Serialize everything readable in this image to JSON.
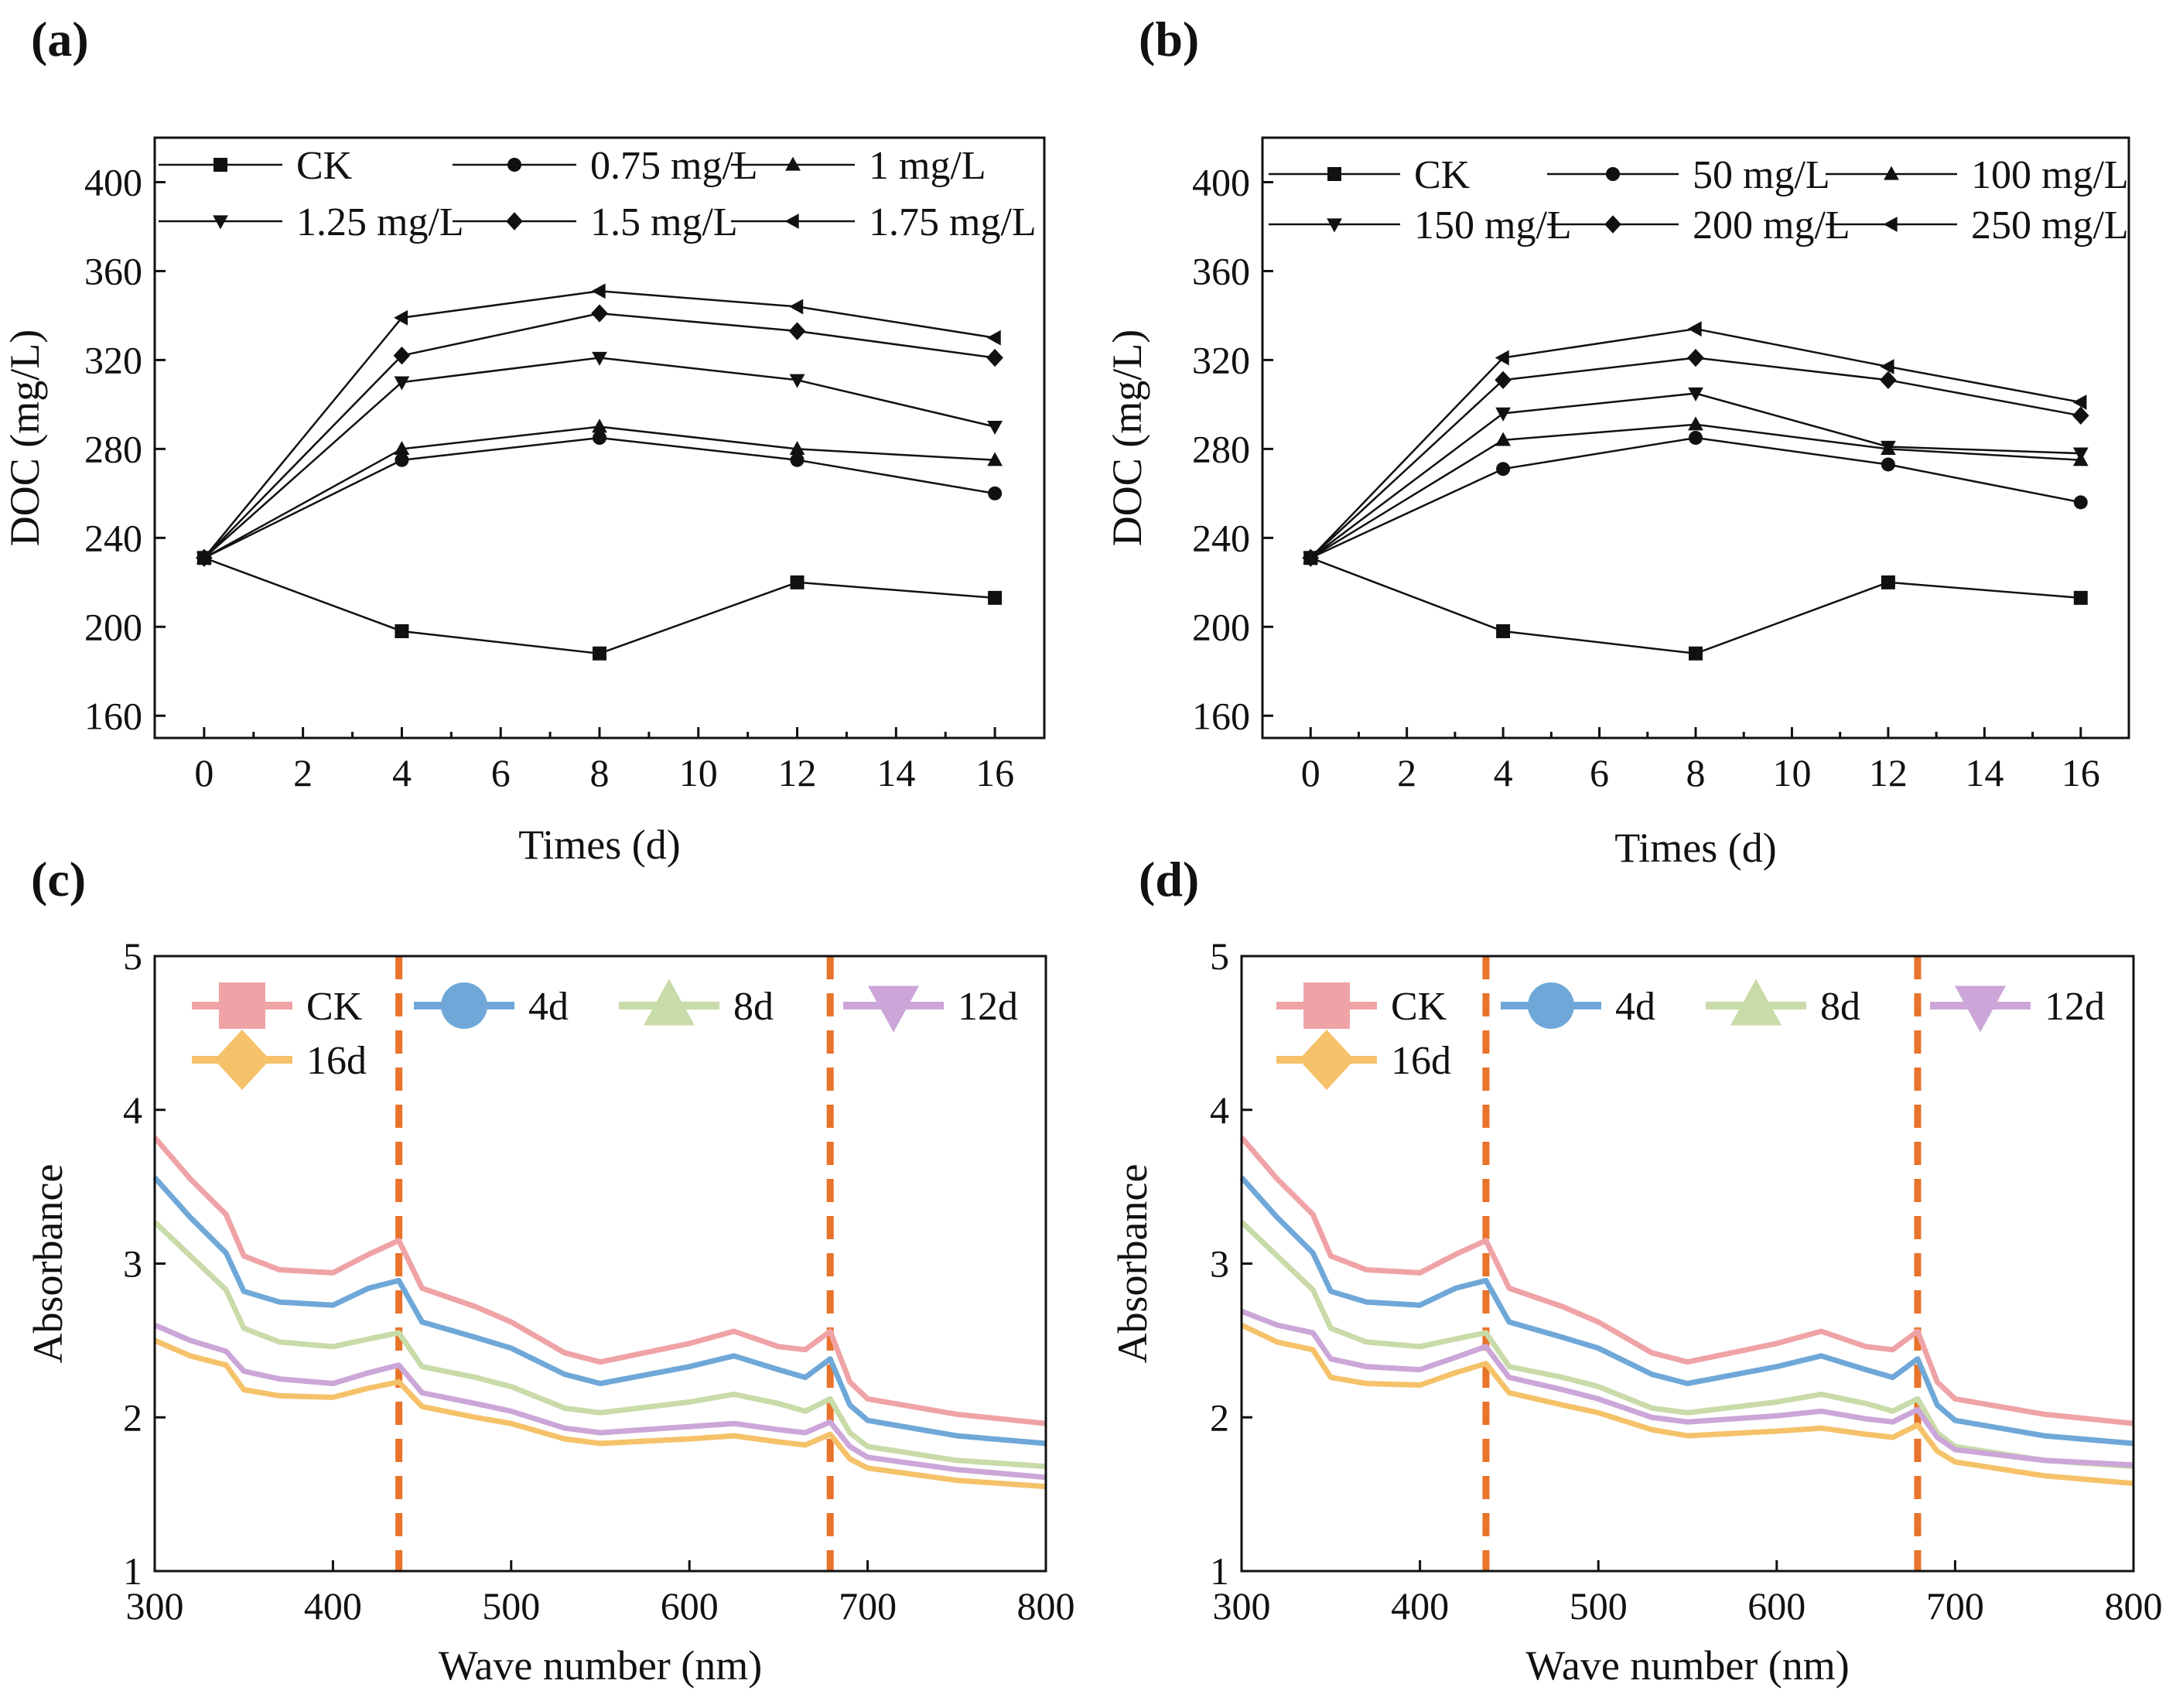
{
  "chart_data": [
    {
      "panel": "(a)",
      "type": "line",
      "xlabel": "Times (d)",
      "ylabel": "DOC (mg/L)",
      "xlim": [
        -1,
        17
      ],
      "ylim": [
        150,
        420
      ],
      "xticks": [
        0,
        2,
        4,
        6,
        8,
        10,
        12,
        14,
        16
      ],
      "yticks": [
        160,
        200,
        240,
        280,
        320,
        360,
        400
      ],
      "x": [
        0,
        4,
        8,
        12,
        16
      ],
      "series": [
        {
          "name": "CK",
          "marker": "square",
          "values": [
            231,
            198,
            188,
            220,
            213
          ]
        },
        {
          "name": "0.75 mg/L",
          "marker": "circle",
          "values": [
            231,
            275,
            285,
            275,
            260
          ]
        },
        {
          "name": "1 mg/L",
          "marker": "triangle-up",
          "values": [
            231,
            280,
            290,
            280,
            275
          ]
        },
        {
          "name": "1.25 mg/L",
          "marker": "triangle-down",
          "values": [
            231,
            310,
            321,
            311,
            290
          ]
        },
        {
          "name": "1.5 mg/L",
          "marker": "diamond",
          "values": [
            231,
            322,
            341,
            333,
            321
          ]
        },
        {
          "name": "1.75 mg/L",
          "marker": "triangle-left",
          "values": [
            231,
            339,
            351,
            344,
            330
          ]
        }
      ]
    },
    {
      "panel": "(b)",
      "type": "line",
      "xlabel": "Times (d)",
      "ylabel": "DOC (mg/L)",
      "xlim": [
        -1,
        17
      ],
      "ylim": [
        150,
        420
      ],
      "xticks": [
        0,
        2,
        4,
        6,
        8,
        10,
        12,
        14,
        16
      ],
      "yticks": [
        160,
        200,
        240,
        280,
        320,
        360,
        400
      ],
      "x": [
        0,
        4,
        8,
        12,
        16
      ],
      "series": [
        {
          "name": "CK",
          "marker": "square",
          "values": [
            231,
            198,
            188,
            220,
            213
          ]
        },
        {
          "name": "50 mg/L",
          "marker": "circle",
          "values": [
            231,
            271,
            285,
            273,
            256
          ]
        },
        {
          "name": "100 mg/L",
          "marker": "triangle-up",
          "values": [
            231,
            284,
            291,
            280,
            275
          ]
        },
        {
          "name": "150 mg/L",
          "marker": "triangle-down",
          "values": [
            231,
            296,
            305,
            281,
            278
          ]
        },
        {
          "name": "200 mg/L",
          "marker": "diamond",
          "values": [
            231,
            311,
            321,
            311,
            295
          ]
        },
        {
          "name": "250 mg/L",
          "marker": "triangle-left",
          "values": [
            231,
            321,
            334,
            317,
            301
          ]
        }
      ]
    },
    {
      "panel": "(c)",
      "type": "line",
      "xlabel": "Wave number (nm)",
      "ylabel": "Absorbance",
      "xlim": [
        300,
        800
      ],
      "ylim": [
        1,
        5
      ],
      "xticks": [
        300,
        400,
        500,
        600,
        700,
        800
      ],
      "yticks": [
        1,
        2,
        3,
        4,
        5
      ],
      "reference_lines_x": [
        437,
        679
      ],
      "x": [
        300,
        320,
        340,
        350,
        370,
        400,
        420,
        437,
        450,
        480,
        500,
        530,
        550,
        600,
        625,
        650,
        665,
        679,
        690,
        700,
        750,
        800
      ],
      "series": [
        {
          "name": "CK",
          "color": "#EFA3A6",
          "marker": "square",
          "values": [
            3.82,
            3.55,
            3.32,
            3.05,
            2.96,
            2.94,
            3.06,
            3.15,
            2.84,
            2.72,
            2.62,
            2.42,
            2.36,
            2.48,
            2.56,
            2.46,
            2.44,
            2.56,
            2.23,
            2.12,
            2.02,
            1.96
          ]
        },
        {
          "name": "4d",
          "color": "#6FA8D8",
          "marker": "circle",
          "values": [
            3.56,
            3.3,
            3.07,
            2.82,
            2.75,
            2.73,
            2.84,
            2.89,
            2.62,
            2.52,
            2.45,
            2.28,
            2.22,
            2.33,
            2.4,
            2.31,
            2.26,
            2.38,
            2.08,
            1.98,
            1.88,
            1.83
          ]
        },
        {
          "name": "8d",
          "color": "#C8DBA8",
          "marker": "triangle-up",
          "values": [
            3.27,
            3.05,
            2.83,
            2.58,
            2.49,
            2.46,
            2.51,
            2.55,
            2.33,
            2.26,
            2.2,
            2.06,
            2.03,
            2.1,
            2.15,
            2.09,
            2.04,
            2.12,
            1.9,
            1.81,
            1.72,
            1.68
          ]
        },
        {
          "name": "12d",
          "color": "#CCA6D8",
          "marker": "triangle-down",
          "values": [
            2.6,
            2.5,
            2.43,
            2.3,
            2.25,
            2.22,
            2.29,
            2.34,
            2.16,
            2.09,
            2.04,
            1.93,
            1.9,
            1.94,
            1.96,
            1.92,
            1.9,
            1.97,
            1.81,
            1.74,
            1.66,
            1.61
          ]
        },
        {
          "name": "16d",
          "color": "#F5C26A",
          "marker": "diamond",
          "values": [
            2.5,
            2.4,
            2.34,
            2.18,
            2.14,
            2.13,
            2.19,
            2.23,
            2.07,
            2.0,
            1.96,
            1.86,
            1.83,
            1.86,
            1.88,
            1.84,
            1.82,
            1.89,
            1.73,
            1.67,
            1.59,
            1.55
          ]
        }
      ]
    },
    {
      "panel": "(d)",
      "type": "line",
      "xlabel": "Wave number (nm)",
      "ylabel": "Absorbance",
      "xlim": [
        300,
        800
      ],
      "ylim": [
        1,
        5
      ],
      "xticks": [
        300,
        400,
        500,
        600,
        700,
        800
      ],
      "yticks": [
        1,
        2,
        3,
        4,
        5
      ],
      "reference_lines_x": [
        437,
        679
      ],
      "x": [
        300,
        320,
        340,
        350,
        370,
        400,
        420,
        437,
        450,
        480,
        500,
        530,
        550,
        600,
        625,
        650,
        665,
        679,
        690,
        700,
        750,
        800
      ],
      "series": [
        {
          "name": "CK",
          "color": "#EFA3A6",
          "marker": "square",
          "values": [
            3.82,
            3.55,
            3.32,
            3.05,
            2.96,
            2.94,
            3.06,
            3.15,
            2.84,
            2.72,
            2.62,
            2.42,
            2.36,
            2.48,
            2.56,
            2.46,
            2.44,
            2.56,
            2.23,
            2.12,
            2.02,
            1.96
          ]
        },
        {
          "name": "4d",
          "color": "#6FA8D8",
          "marker": "circle",
          "values": [
            3.56,
            3.3,
            3.07,
            2.82,
            2.75,
            2.73,
            2.84,
            2.89,
            2.62,
            2.52,
            2.45,
            2.28,
            2.22,
            2.33,
            2.4,
            2.31,
            2.26,
            2.38,
            2.08,
            1.98,
            1.88,
            1.83
          ]
        },
        {
          "name": "8d",
          "color": "#C8DBA8",
          "marker": "triangle-up",
          "values": [
            3.27,
            3.05,
            2.83,
            2.58,
            2.49,
            2.46,
            2.51,
            2.55,
            2.33,
            2.26,
            2.2,
            2.06,
            2.03,
            2.1,
            2.15,
            2.09,
            2.04,
            2.12,
            1.9,
            1.81,
            1.72,
            1.68
          ]
        },
        {
          "name": "12d",
          "color": "#CCA6D8",
          "marker": "triangle-down",
          "values": [
            2.69,
            2.6,
            2.55,
            2.38,
            2.33,
            2.31,
            2.39,
            2.46,
            2.26,
            2.18,
            2.12,
            2.0,
            1.97,
            2.01,
            2.04,
            1.99,
            1.97,
            2.05,
            1.87,
            1.79,
            1.72,
            1.69
          ]
        },
        {
          "name": "16d",
          "color": "#F5C26A",
          "marker": "diamond",
          "values": [
            2.6,
            2.49,
            2.44,
            2.26,
            2.22,
            2.21,
            2.29,
            2.35,
            2.16,
            2.08,
            2.03,
            1.92,
            1.88,
            1.91,
            1.93,
            1.89,
            1.87,
            1.95,
            1.78,
            1.71,
            1.62,
            1.57
          ]
        }
      ]
    }
  ],
  "reference_line_color": "#E8732A"
}
